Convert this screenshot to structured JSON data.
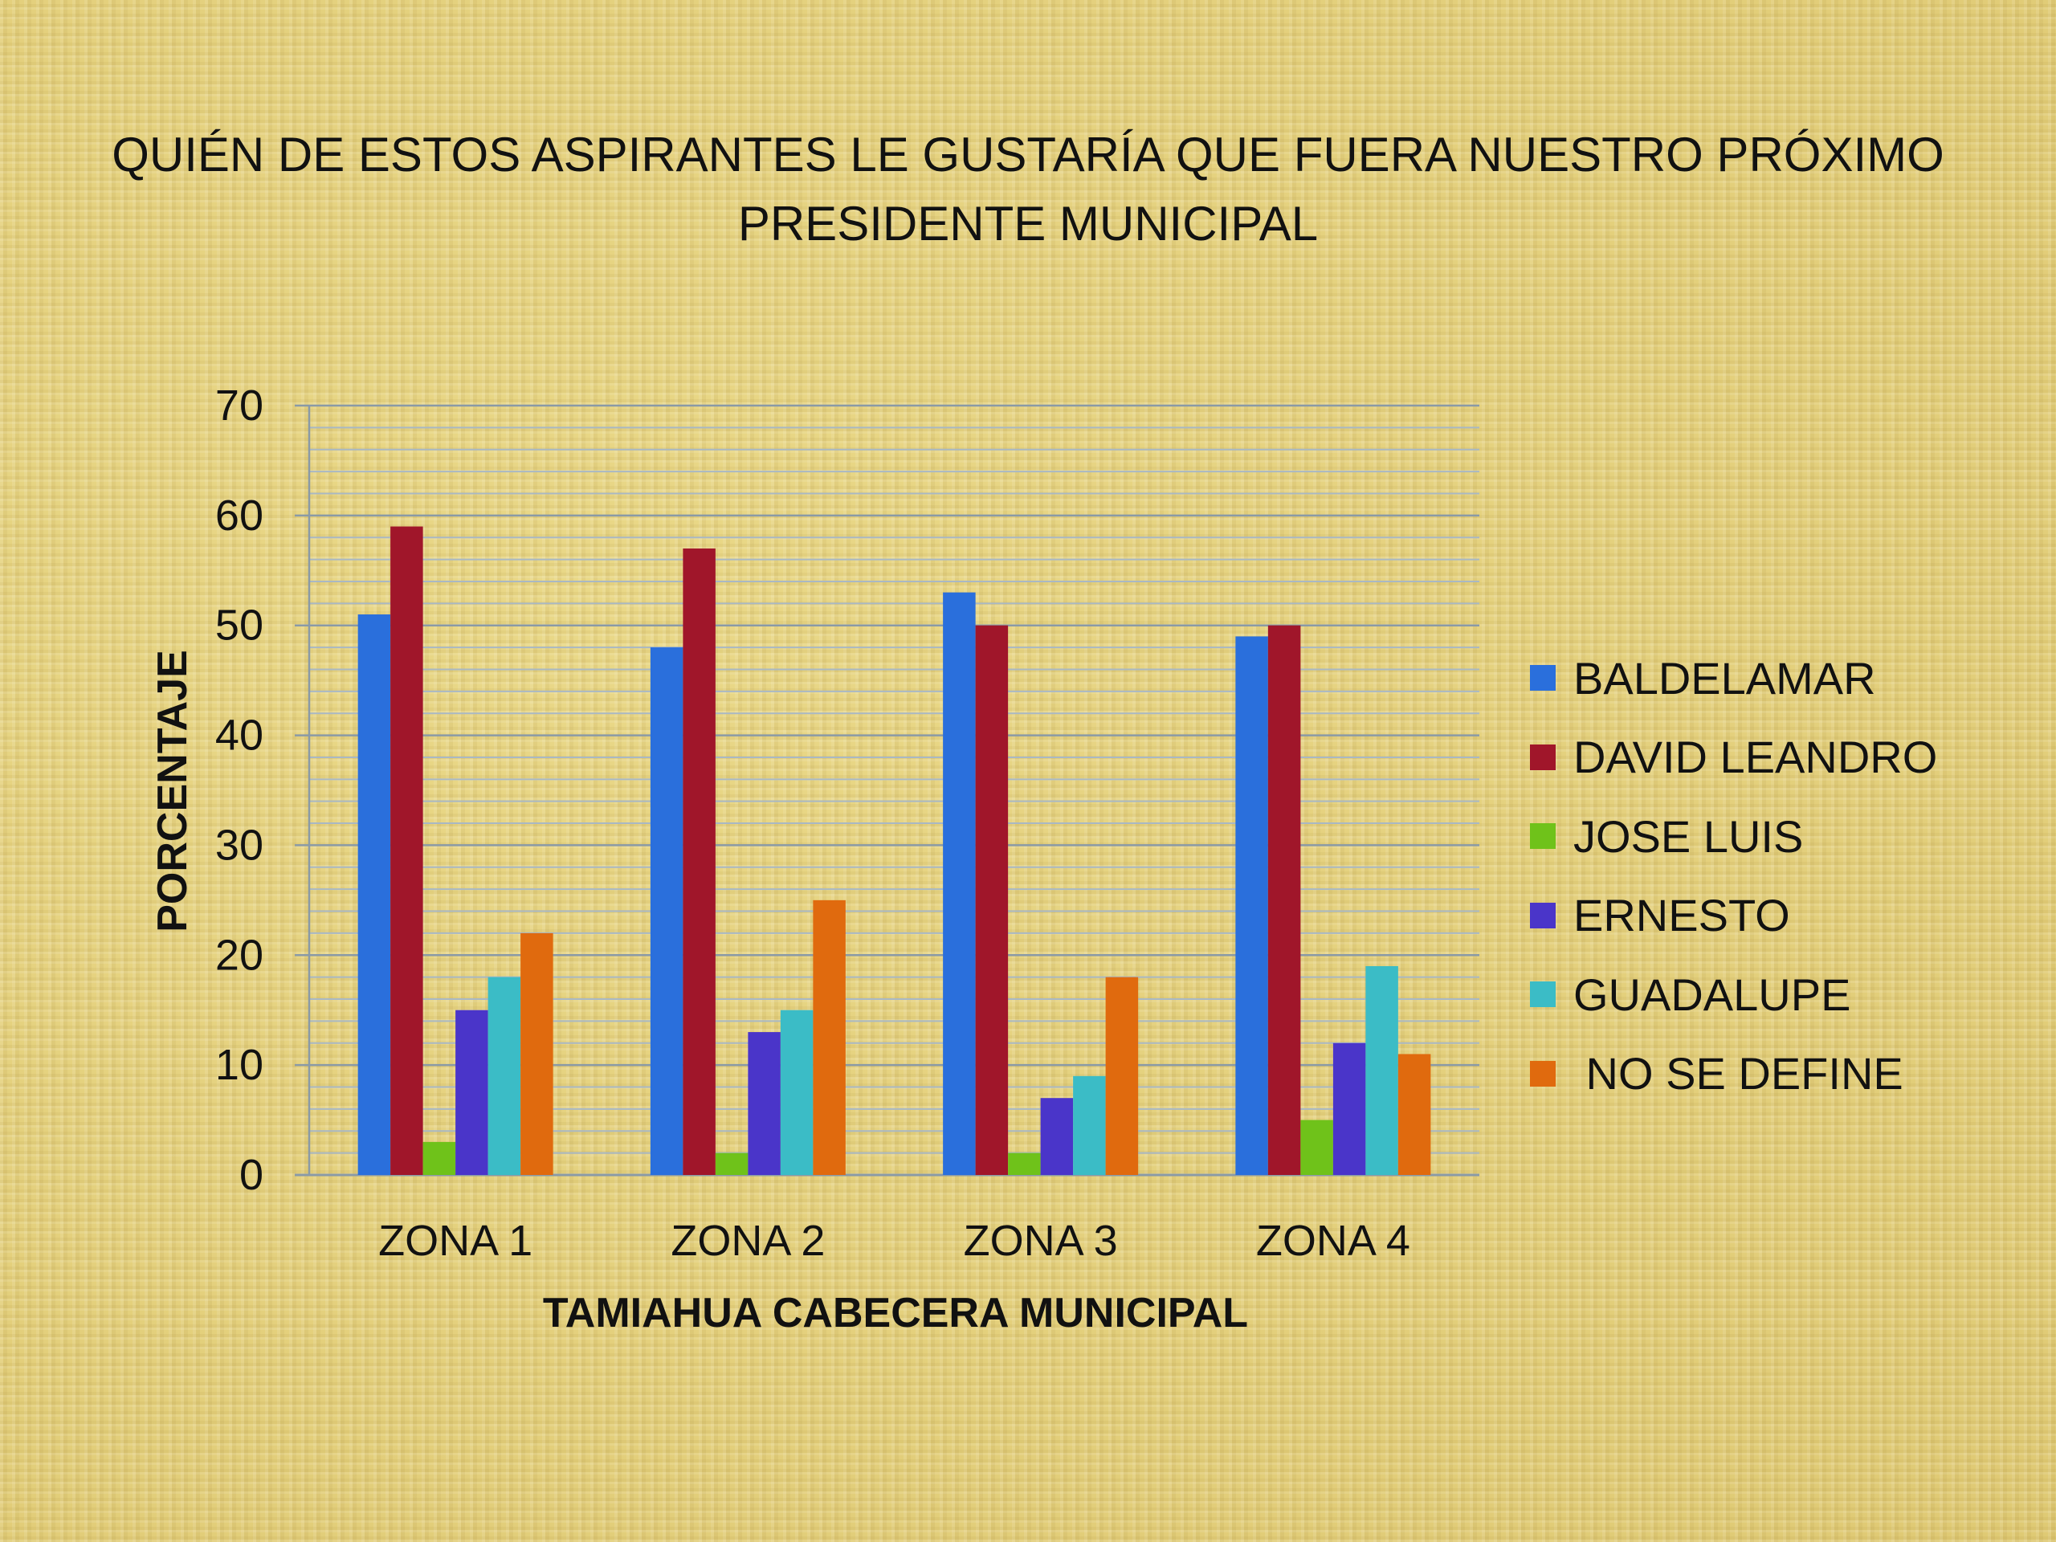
{
  "chart_data": {
    "type": "bar",
    "title": "QUIÉN DE ESTOS ASPIRANTES LE GUSTARÍA QUE FUERA NUESTRO PRÓXIMO PRESIDENTE MUNICIPAL",
    "xlabel": "TAMIAHUA CABECERA MUNICIPAL",
    "ylabel": "PORCENTAJE",
    "ylim": [
      0,
      70
    ],
    "yticks": [
      "0",
      "10",
      "20",
      "30",
      "40",
      "50",
      "60",
      "70"
    ],
    "categories": [
      "ZONA 1",
      "ZONA 2",
      "ZONA 3",
      "ZONA 4"
    ],
    "series": [
      {
        "name": "BALDELAMAR",
        "color": "#2a6fdc",
        "values": [
          51,
          48,
          53,
          49
        ]
      },
      {
        "name": "DAVID LEANDRO",
        "color": "#a0162a",
        "values": [
          59,
          57,
          50,
          50
        ]
      },
      {
        "name": "JOSE LUIS",
        "color": "#6fc21a",
        "values": [
          3,
          2,
          2,
          5
        ]
      },
      {
        "name": "ERNESTO",
        "color": "#4a35c9",
        "values": [
          15,
          13,
          7,
          12
        ]
      },
      {
        "name": "GUADALUPE",
        "color": "#3bbcc6",
        "values": [
          18,
          15,
          9,
          19
        ]
      },
      {
        "name": " NO SE DEFINE",
        "color": "#e06a0e",
        "values": [
          22,
          25,
          18,
          11
        ]
      }
    ],
    "legend_position": "right",
    "grid": true
  }
}
